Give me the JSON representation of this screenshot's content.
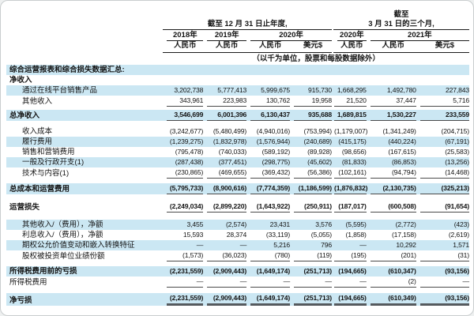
{
  "colors": {
    "highlight": "#cbe7f3",
    "text": "#141414",
    "header_rule": "#1b1b1b",
    "number_underline": "#4a4a4a"
  },
  "table": {
    "header": {
      "annual_group_title": "截至 12 月 31 日止年度,",
      "quarter_group_title_line1": "截至",
      "quarter_group_title_line2": "3 月 31 日的三个月,",
      "years_annual": [
        "2018年",
        "2019年",
        "2020年"
      ],
      "years_quarter": [
        "2020年",
        "2021年"
      ],
      "currency_row": [
        "人民币",
        "人民币",
        "人民币",
        "美元$",
        "人民币",
        "人民币",
        "美元$"
      ],
      "unit_note": "（以千为单位，股票和每股数据除外）"
    },
    "rows": [
      {
        "type": "section",
        "label": "综合运营报表和综合损失数据汇总:",
        "blue": true,
        "bold": true
      },
      {
        "type": "label",
        "label": "净收入",
        "bold": true
      },
      {
        "type": "data",
        "label": "通过在线平台销售产品",
        "indent": true,
        "blue": true,
        "values": [
          "3,202,738",
          "5,777,413",
          "5,999,675",
          "915,730",
          "1,668,295",
          "1,492,780",
          "227,843"
        ]
      },
      {
        "type": "data",
        "label": "其他收入",
        "indent": true,
        "underline": "single",
        "values": [
          "343,961",
          "223,983",
          "130,762",
          "19,958",
          "21,520",
          "37,447",
          "5,716"
        ]
      },
      {
        "type": "spacer",
        "h": 4
      },
      {
        "type": "data",
        "label": "总净收入",
        "bold": true,
        "blue": true,
        "underline": "single",
        "values": [
          "3,546,699",
          "6,001,396",
          "6,130,437",
          "935,688",
          "1,689,815",
          "1,530,227",
          "233,559"
        ]
      },
      {
        "type": "spacer",
        "h": 7
      },
      {
        "type": "data",
        "label": "收入成本",
        "indent": true,
        "values": [
          "(3,242,677)",
          "(5,480,499)",
          "(4,940,016)",
          "(753,994)",
          "(1,179,007)",
          "(1,341,249)",
          "(204,715)"
        ]
      },
      {
        "type": "data",
        "label": "履行费用",
        "indent": true,
        "blue": true,
        "values": [
          "(1,239,275)",
          "(1,832,978)",
          "(1,576,944)",
          "(240,689)",
          "(415,175)",
          "(440,224)",
          "(67,191)"
        ]
      },
      {
        "type": "data",
        "label": "销售和营销费用",
        "indent": true,
        "values": [
          "(795,478)",
          "(740,033)",
          "(589,192)",
          "(89,928)",
          "(98,656)",
          "(167,615)",
          "(25,583)"
        ]
      },
      {
        "type": "data",
        "label": "一般及行政开支(1)",
        "indent": true,
        "blue": true,
        "values": [
          "(287,438)",
          "(377,451)",
          "(298,775)",
          "(45,602)",
          "(81,833)",
          "(86,853)",
          "(13,256)"
        ]
      },
      {
        "type": "data",
        "label": "技术与内容(1)",
        "indent": true,
        "underline": "single",
        "values": [
          "(230,865)",
          "(469,655)",
          "(369,432)",
          "(56,386)",
          "(102,161)",
          "(94,794)",
          "(14,468)"
        ]
      },
      {
        "type": "spacer",
        "h": 6
      },
      {
        "type": "data",
        "label": "总成本和运营费用",
        "bold": true,
        "blue": true,
        "underline": "single",
        "values": [
          "(5,795,733)",
          "(8,900,616)",
          "(7,774,359)",
          "(1,186,599)",
          "(1,876,832)",
          "(2,130,735)",
          "(325,213)"
        ]
      },
      {
        "type": "spacer",
        "h": 9
      },
      {
        "type": "data",
        "label": "运营损失",
        "bold": true,
        "underline": "single",
        "values": [
          "(2,249,034)",
          "(2,899,220)",
          "(1,643,922)",
          "(250,911)",
          "(187,017)",
          "(600,508)",
          "(91,654)"
        ]
      },
      {
        "type": "spacer",
        "h": 9
      },
      {
        "type": "data",
        "label": "其他收入/（费用），净额",
        "indent": true,
        "blue": true,
        "values": [
          "3,455",
          "(2,574)",
          "23,431",
          "3,576",
          "(5,595)",
          "(2,772)",
          "(423)"
        ]
      },
      {
        "type": "data",
        "label": "利息收入/（费用），净额",
        "indent": true,
        "values": [
          "15,593",
          "28,374",
          "(33,119)",
          "(5,055)",
          "(1,858)",
          "(17,158)",
          "(2,619)"
        ]
      },
      {
        "type": "data",
        "label": "期权公允价值变动和嵌入转换特征",
        "indent": true,
        "blue": true,
        "values": [
          "—",
          "—",
          "5,216",
          "796",
          "—",
          "10,292",
          "1,571"
        ]
      },
      {
        "type": "data",
        "label": "股权被投资单位业绩份额",
        "indent": true,
        "underline": "single",
        "values": [
          "(1,573)",
          "(36,023)",
          "(780)",
          "(119)",
          "(195)",
          "(201)",
          "(31)"
        ]
      },
      {
        "type": "spacer",
        "h": 6
      },
      {
        "type": "data",
        "label": "所得税费用前的亏损",
        "bold": true,
        "blue": true,
        "values": [
          "(2,231,559)",
          "(2,909,443)",
          "(1,649,174)",
          "(251,713)",
          "(194,665)",
          "(610,347)",
          "(93,156)"
        ]
      },
      {
        "type": "data",
        "label": "所得税费用",
        "underline": "single",
        "values": [
          "—",
          "—",
          "—",
          "—",
          "—",
          "(2)",
          "—"
        ]
      },
      {
        "type": "spacer",
        "h": 7
      },
      {
        "type": "data",
        "label": "净亏损",
        "bold": true,
        "blue": true,
        "underline": "thick",
        "values": [
          "(2,231,559)",
          "(2,909,443)",
          "(1,649,174)",
          "(251,713)",
          "(194,665)",
          "(610,349)",
          "(93,156)"
        ]
      }
    ]
  }
}
